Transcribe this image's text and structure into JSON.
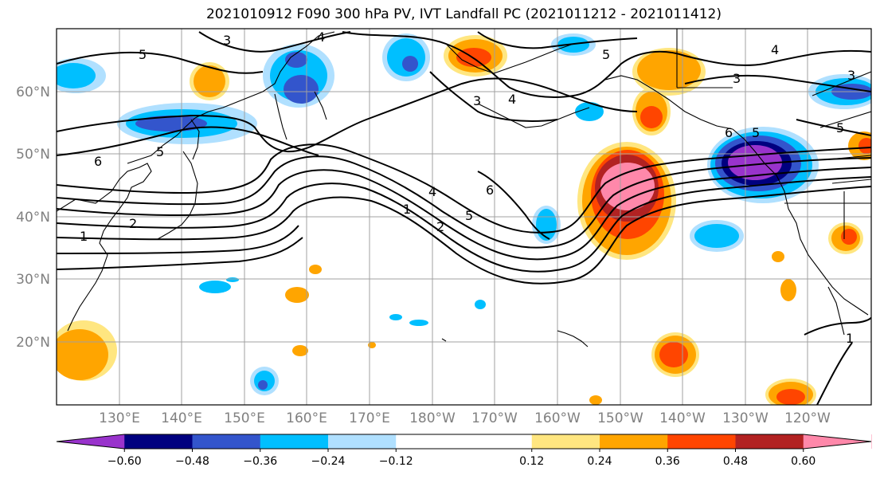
{
  "title": "2021010912 F090 300 hPa PV, IVT Landfall PC (2021011212 - 2021011412)",
  "lat_labels": [
    "60°N",
    "50°N",
    "40°N",
    "30°N",
    "20°N"
  ],
  "lon_labels": [
    "130°E",
    "140°E",
    "150°E",
    "160°E",
    "170°E",
    "180°W",
    "170°W",
    "160°W",
    "150°W",
    "140°W",
    "130°W",
    "120°W"
  ],
  "colorbar": {
    "colors": [
      "#9933cc",
      "#00007f",
      "#3355cc",
      "#00bfff",
      "#b0e0ff",
      "#ffffff",
      "#ffffff",
      "#ffe680",
      "#ffa500",
      "#ff4500",
      "#b22222",
      "#ff88aa"
    ],
    "tick_labels": [
      "−0.60",
      "−0.48",
      "−0.36",
      "−0.24",
      "−0.12",
      "0.12",
      "0.24",
      "0.36",
      "0.48",
      "0.60"
    ]
  },
  "contour_labels": [
    "5",
    "3",
    "4",
    "3",
    "4",
    "5",
    "3",
    "5",
    "6",
    "5",
    "4",
    "6",
    "1",
    "2",
    "5",
    "1",
    "2",
    "1",
    "6",
    "5",
    "4",
    "3"
  ]
}
